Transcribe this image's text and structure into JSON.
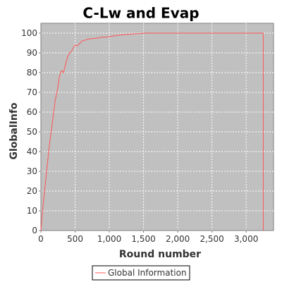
{
  "chart_data": {
    "type": "line",
    "title": "C-Lw and Evap",
    "xlabel": "Round number",
    "ylabel": "GlobalInfo",
    "xlim": [
      0,
      3400
    ],
    "ylim": [
      0,
      105
    ],
    "xticks": [
      0,
      500,
      1000,
      1500,
      2000,
      2500,
      3000
    ],
    "xtick_labels": [
      "0",
      "500",
      "1,000",
      "1,500",
      "2,000",
      "2,500",
      "3,000"
    ],
    "yticks": [
      0,
      10,
      20,
      30,
      40,
      50,
      60,
      70,
      80,
      90,
      100
    ],
    "ytick_labels": [
      "0",
      "10",
      "20",
      "30",
      "40",
      "50",
      "60",
      "70",
      "80",
      "90",
      "100"
    ],
    "grid": true,
    "legend_position": "bottom-center",
    "plot_background": "#c0c0c0",
    "series": [
      {
        "name": "Global Information",
        "color": "#ff5555",
        "x": [
          0,
          30,
          60,
          90,
          120,
          150,
          180,
          210,
          240,
          270,
          300,
          330,
          360,
          390,
          420,
          450,
          480,
          500,
          530,
          560,
          600,
          650,
          700,
          750,
          800,
          850,
          900,
          950,
          1000,
          1050,
          1100,
          1150,
          1200,
          1250,
          1300,
          1350,
          1400,
          1450,
          1500,
          1700,
          2000,
          2500,
          3000,
          3250,
          3250
        ],
        "values": [
          0,
          12,
          22,
          32,
          42,
          50,
          58,
          66,
          71,
          78,
          81,
          80,
          84,
          88,
          90,
          91,
          93,
          94,
          93.5,
          94.5,
          96,
          96.5,
          97,
          97.2,
          97.4,
          97.6,
          98,
          98,
          98.2,
          98.5,
          98.8,
          99,
          99.2,
          99.3,
          99.5,
          99.6,
          99.7,
          99.8,
          100,
          100,
          100,
          100,
          100,
          100,
          0
        ]
      }
    ]
  }
}
